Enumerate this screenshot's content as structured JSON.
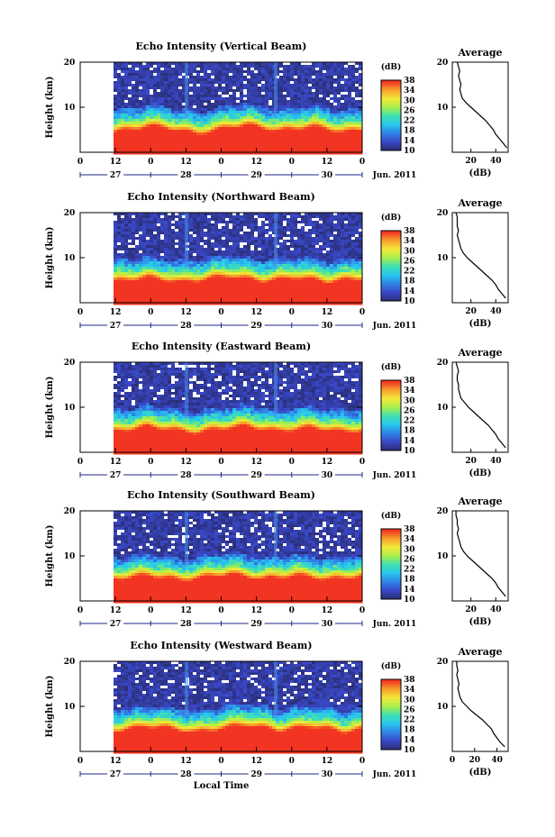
{
  "chart_data": [
    {
      "type": "heatmap",
      "title": "Echo Intensity (Vertical Beam)",
      "ylabel": "Height (km)",
      "ylim": [
        0,
        20
      ],
      "yticks": [
        10,
        20
      ],
      "xticks": [
        "0",
        "12",
        "0",
        "12",
        "0",
        "12",
        "0",
        "12",
        "0"
      ],
      "date_ticks": [
        "27",
        "28",
        "29",
        "30"
      ],
      "date_label": "Jun. 2011",
      "colorbar": {
        "unit": "(dB)",
        "ticks": [
          10,
          14,
          18,
          22,
          26,
          30,
          34,
          38
        ],
        "range": [
          10,
          38
        ]
      },
      "layer_top_km": [
        6.2,
        6.8,
        7.5,
        7.2,
        6.5,
        5.8,
        6.4,
        7.3,
        7.8,
        7.1,
        6.4,
        6.9,
        7.4,
        6.8,
        6.1,
        6.6
      ],
      "average": {
        "title": "Average",
        "xlabel": "(dB)",
        "xticks": [
          20,
          40
        ],
        "xlim": [
          5,
          50
        ],
        "ylim": [
          0,
          20
        ],
        "yticks": [
          10,
          20
        ],
        "height_km": [
          1,
          2,
          3,
          4,
          5,
          6,
          7,
          8,
          9,
          10,
          11,
          12,
          13,
          14,
          15,
          16,
          17,
          18,
          19,
          20
        ],
        "db": [
          49,
          46,
          43,
          40,
          38,
          35,
          32,
          28,
          24,
          20,
          16,
          13,
          12,
          11,
          12,
          11,
          10,
          11,
          10,
          9
        ]
      }
    },
    {
      "type": "heatmap",
      "title": "Echo Intensity (Northward Beam)",
      "ylabel": "Height (km)",
      "ylim": [
        0,
        20
      ],
      "yticks": [
        10,
        20
      ],
      "xticks": [
        "0",
        "12",
        "0",
        "12",
        "0",
        "12",
        "0",
        "12",
        "0"
      ],
      "date_ticks": [
        "27",
        "28",
        "29",
        "30"
      ],
      "date_label": "Jun. 2011",
      "colorbar": {
        "unit": "(dB)",
        "ticks": [
          10,
          14,
          18,
          22,
          26,
          30,
          34,
          38
        ],
        "range": [
          10,
          38
        ]
      },
      "layer_top_km": [
        6.4,
        6.9,
        7.3,
        6.8,
        6.2,
        6.6,
        7.2,
        7.6,
        7.0,
        6.5,
        6.8,
        7.3,
        6.9,
        6.3,
        6.7,
        7.0
      ],
      "average": {
        "title": "Average",
        "xlabel": "(dB)",
        "xticks": [
          20,
          40
        ],
        "xlim": [
          5,
          50
        ],
        "ylim": [
          0,
          20
        ],
        "yticks": [
          10,
          20
        ],
        "height_km": [
          1,
          2,
          3,
          4,
          5,
          6,
          7,
          8,
          9,
          10,
          11,
          12,
          13,
          14,
          15,
          16,
          17,
          18,
          19,
          20
        ],
        "db": [
          48,
          45,
          42,
          40,
          37,
          33,
          29,
          25,
          21,
          17,
          14,
          12,
          11,
          10,
          9,
          10,
          9,
          9,
          9,
          8
        ]
      }
    },
    {
      "type": "heatmap",
      "title": "Echo Intensity (Eastward Beam)",
      "ylabel": "Height (km)",
      "ylim": [
        0,
        20
      ],
      "yticks": [
        10,
        20
      ],
      "xticks": [
        "0",
        "12",
        "0",
        "12",
        "0",
        "12",
        "0",
        "12",
        "0"
      ],
      "date_ticks": [
        "27",
        "28",
        "29",
        "30"
      ],
      "date_label": "Jun. 2011",
      "colorbar": {
        "unit": "(dB)",
        "ticks": [
          10,
          14,
          18,
          22,
          26,
          30,
          34,
          38
        ],
        "range": [
          10,
          38
        ]
      },
      "layer_top_km": [
        6.3,
        6.8,
        7.4,
        7.0,
        6.4,
        6.0,
        6.7,
        7.2,
        7.5,
        6.9,
        6.3,
        6.8,
        7.2,
        6.7,
        6.2,
        6.5
      ],
      "average": {
        "title": "Average",
        "xlabel": "(dB)",
        "xticks": [
          20,
          40
        ],
        "xlim": [
          5,
          50
        ],
        "ylim": [
          0,
          20
        ],
        "yticks": [
          10,
          20
        ],
        "height_km": [
          1,
          2,
          3,
          4,
          5,
          6,
          7,
          8,
          9,
          10,
          11,
          12,
          13,
          14,
          15,
          16,
          17,
          18,
          19,
          20
        ],
        "db": [
          48,
          45,
          42,
          40,
          37,
          34,
          30,
          26,
          22,
          18,
          15,
          12,
          11,
          10,
          10,
          9,
          9,
          10,
          9,
          8
        ]
      }
    },
    {
      "type": "heatmap",
      "title": "Echo Intensity (Southward Beam)",
      "ylabel": "Height (km)",
      "ylim": [
        0,
        20
      ],
      "yticks": [
        10,
        20
      ],
      "xticks": [
        "0",
        "12",
        "0",
        "12",
        "0",
        "12",
        "0",
        "12",
        "0"
      ],
      "date_ticks": [
        "27",
        "28",
        "29",
        "30"
      ],
      "date_label": "Jun. 2011",
      "colorbar": {
        "unit": "(dB)",
        "ticks": [
          10,
          14,
          18,
          22,
          26,
          30,
          34,
          38
        ],
        "range": [
          10,
          38
        ]
      },
      "layer_top_km": [
        6.5,
        7.0,
        7.4,
        6.9,
        6.3,
        6.7,
        7.3,
        7.7,
        7.1,
        6.6,
        6.9,
        7.4,
        7.0,
        6.4,
        6.8,
        7.1
      ],
      "average": {
        "title": "Average",
        "xlabel": "(dB)",
        "xticks": [
          20,
          40
        ],
        "xlim": [
          5,
          50
        ],
        "ylim": [
          0,
          20
        ],
        "yticks": [
          10,
          20
        ],
        "height_km": [
          1,
          2,
          3,
          4,
          5,
          6,
          7,
          8,
          9,
          10,
          11,
          12,
          13,
          14,
          15,
          16,
          17,
          18,
          19,
          20
        ],
        "db": [
          48,
          45,
          42,
          40,
          37,
          33,
          29,
          25,
          21,
          17,
          14,
          12,
          11,
          10,
          9,
          10,
          9,
          9,
          8,
          8
        ]
      }
    },
    {
      "type": "heatmap",
      "title": "Echo Intensity (Westward Beam)",
      "ylabel": "Height (km)",
      "ylim": [
        0,
        20
      ],
      "yticks": [
        10,
        20
      ],
      "xticks": [
        "0",
        "12",
        "0",
        "12",
        "0",
        "12",
        "0",
        "12",
        "0"
      ],
      "date_ticks": [
        "27",
        "28",
        "29",
        "30"
      ],
      "date_label": "Jun. 2011",
      "xlabel": "Local Time",
      "colorbar": {
        "unit": "(dB)",
        "ticks": [
          10,
          14,
          18,
          22,
          26,
          30,
          34,
          38
        ],
        "range": [
          10,
          38
        ]
      },
      "layer_top_km": [
        6.2,
        6.7,
        7.3,
        7.0,
        6.4,
        5.9,
        6.5,
        7.1,
        7.6,
        7.0,
        6.3,
        6.8,
        7.3,
        6.7,
        6.0,
        6.5
      ],
      "average": {
        "title": "Average",
        "xlabel": "(dB)",
        "xticks": [
          0,
          20,
          40
        ],
        "xlim": [
          0,
          50
        ],
        "ylim": [
          0,
          20
        ],
        "yticks": [
          10,
          20
        ],
        "height_km": [
          1,
          2,
          3,
          4,
          5,
          6,
          7,
          8,
          9,
          10,
          11,
          12,
          13,
          14,
          15,
          16,
          17,
          18,
          19,
          20
        ],
        "db": [
          47,
          43,
          40,
          37,
          35,
          31,
          27,
          22,
          17,
          13,
          9,
          7,
          6,
          5,
          6,
          5,
          4,
          5,
          4,
          4
        ]
      }
    }
  ]
}
